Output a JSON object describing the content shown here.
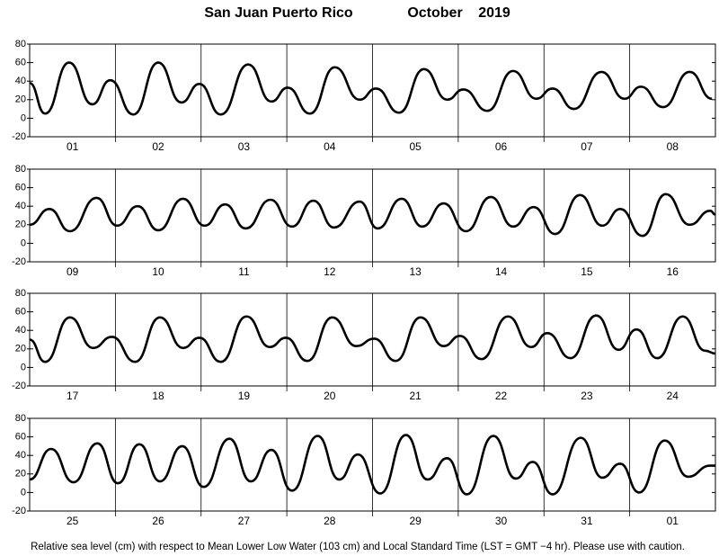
{
  "header": {
    "location": "San Juan Puerto Rico",
    "month": "October",
    "year": "2019"
  },
  "footer": "Relative sea level (cm) with respect to Mean Lower Low Water (103 cm) and Local Standard Time (LST = GMT −4 hr). Please use with caution.",
  "chart_data": [
    {
      "type": "line",
      "categories": [
        "01",
        "02",
        "03",
        "04",
        "05",
        "06",
        "07",
        "08"
      ],
      "x": [
        0,
        0.18,
        0.46,
        0.73,
        0.94,
        1.21,
        1.5,
        1.77,
        1.98,
        2.23,
        2.55,
        2.82,
        3.01,
        3.27,
        3.56,
        3.85,
        4.04,
        4.31,
        4.6,
        4.87,
        5.06,
        5.34,
        5.64,
        5.91,
        6.1,
        6.35,
        6.67,
        6.94,
        7.13,
        7.39,
        7.7,
        7.96
      ],
      "series": [
        {
          "color": "#000000",
          "values": [
            38,
            5,
            60,
            15,
            41,
            4,
            60,
            17,
            37,
            4,
            58,
            18,
            33,
            5,
            55,
            20,
            32,
            6,
            53,
            20,
            31,
            8,
            51,
            21,
            32,
            10,
            50,
            21,
            34,
            12,
            50,
            21
          ]
        }
      ],
      "xlim": [
        0,
        8
      ],
      "xticks": [
        1,
        2,
        3,
        4,
        5,
        6,
        7
      ],
      "ylim": [
        -20,
        80
      ],
      "yticks": [
        -20,
        0,
        20,
        40,
        60,
        80
      ],
      "grid": true
    },
    {
      "type": "line",
      "categories": [
        "09",
        "10",
        "11",
        "12",
        "13",
        "14",
        "15",
        "16"
      ],
      "x": [
        0,
        0.23,
        0.47,
        0.78,
        1.02,
        1.26,
        1.5,
        1.79,
        2.04,
        2.28,
        2.52,
        2.81,
        3.06,
        3.31,
        3.55,
        3.85,
        4.06,
        4.34,
        4.58,
        4.83,
        5.09,
        5.38,
        5.64,
        5.88,
        6.13,
        6.42,
        6.68,
        6.89,
        7.15,
        7.42,
        7.7,
        7.94,
        8
      ],
      "series": [
        {
          "color": "#000000",
          "values": [
            20,
            37,
            13,
            49,
            19,
            40,
            14,
            48,
            19,
            42,
            16,
            47,
            18,
            46,
            17,
            45,
            16,
            48,
            18,
            43,
            13,
            50,
            18,
            39,
            10,
            52,
            19,
            37,
            8,
            53,
            20,
            35,
            31
          ]
        }
      ],
      "xlim": [
        0,
        8
      ],
      "xticks": [
        1,
        2,
        3,
        4,
        5,
        6,
        7
      ],
      "ylim": [
        -20,
        80
      ],
      "yticks": [
        -20,
        0,
        20,
        40,
        60,
        80
      ],
      "grid": true
    },
    {
      "type": "line",
      "categories": [
        "17",
        "18",
        "19",
        "20",
        "21",
        "22",
        "23",
        "24"
      ],
      "x": [
        0,
        0.18,
        0.47,
        0.74,
        0.96,
        1.23,
        1.52,
        1.79,
        1.98,
        2.23,
        2.53,
        2.8,
        2.99,
        3.24,
        3.53,
        3.81,
        4.02,
        4.27,
        4.56,
        4.83,
        5.02,
        5.27,
        5.58,
        5.85,
        6.04,
        6.31,
        6.61,
        6.87,
        7.08,
        7.32,
        7.62,
        7.88,
        8
      ],
      "series": [
        {
          "color": "#000000",
          "values": [
            30,
            6,
            54,
            21,
            33,
            6,
            54,
            21,
            32,
            6,
            55,
            22,
            32,
            7,
            54,
            23,
            31,
            7,
            54,
            23,
            34,
            9,
            55,
            22,
            37,
            10,
            56,
            19,
            41,
            10,
            55,
            18,
            15
          ]
        }
      ],
      "xlim": [
        0,
        8
      ],
      "xticks": [
        1,
        2,
        3,
        4,
        5,
        6,
        7
      ],
      "ylim": [
        -20,
        80
      ],
      "yticks": [
        -20,
        0,
        20,
        40,
        60,
        80
      ],
      "grid": true
    },
    {
      "type": "line",
      "categories": [
        "25",
        "26",
        "27",
        "28",
        "29",
        "30",
        "31",
        "01"
      ],
      "x": [
        0,
        0.25,
        0.51,
        0.79,
        1.03,
        1.28,
        1.52,
        1.78,
        2.03,
        2.33,
        2.58,
        2.82,
        3.06,
        3.36,
        3.61,
        3.83,
        4.09,
        4.39,
        4.64,
        4.87,
        5.1,
        5.41,
        5.67,
        5.87,
        6.1,
        6.43,
        6.68,
        6.89,
        7.11,
        7.41,
        7.68,
        7.94,
        8
      ],
      "series": [
        {
          "color": "#000000",
          "values": [
            14,
            47,
            11,
            53,
            10,
            52,
            12,
            50,
            6,
            58,
            12,
            46,
            2,
            61,
            14,
            41,
            -1,
            62,
            14,
            37,
            -2,
            61,
            15,
            33,
            -2,
            59,
            16,
            31,
            0,
            56,
            17,
            29,
            29
          ]
        }
      ],
      "xlim": [
        0,
        8
      ],
      "xticks": [
        1,
        2,
        3,
        4,
        5,
        6,
        7
      ],
      "ylim": [
        -20,
        80
      ],
      "yticks": [
        -20,
        0,
        20,
        40,
        60,
        80
      ],
      "grid": true
    }
  ]
}
